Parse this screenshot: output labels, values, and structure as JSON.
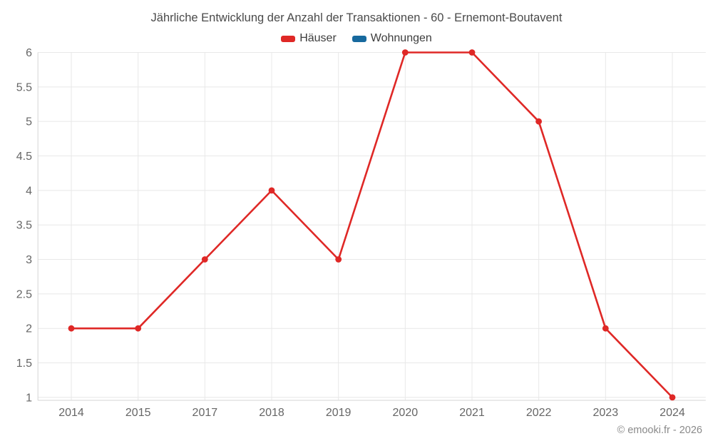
{
  "chart_data": {
    "type": "line",
    "title": "Jährliche Entwicklung der Anzahl der Transaktionen - 60 - Ernemont-Boutavent",
    "categories": [
      "2014",
      "2015",
      "2017",
      "2018",
      "2019",
      "2020",
      "2021",
      "2022",
      "2023",
      "2024"
    ],
    "series": [
      {
        "name": "Häuser",
        "color": "#df2826",
        "values": [
          2,
          2,
          3,
          4,
          3,
          6,
          6,
          5,
          2,
          1
        ]
      },
      {
        "name": "Wohnungen",
        "color": "#17699e",
        "values": []
      }
    ],
    "ylim": [
      1,
      6
    ],
    "ytick_step": 0.5,
    "ytick_labels": [
      "1",
      "1.5",
      "2",
      "2.5",
      "3",
      "3.5",
      "4",
      "4.5",
      "5",
      "5.5",
      "6"
    ],
    "xlabel": "",
    "ylabel": "",
    "grid": true,
    "legend_position": "top-center",
    "footer": "© emooki.fr - 2026"
  },
  "colors": {
    "gridline": "#e8e8e8",
    "axis_line": "#d6d6d6",
    "axis_label": "#666666",
    "title_text": "#4a4a4a",
    "legend_text": "#3d3d3d",
    "credits_text": "#8a8a8a",
    "background": "#ffffff",
    "series_hauser": "#df2826",
    "series_wohnungen": "#17699e"
  }
}
